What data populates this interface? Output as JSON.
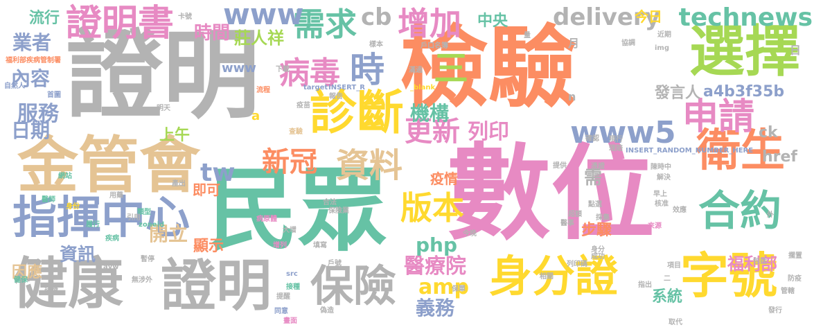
{
  "palette": {
    "teal": "#66c2a5",
    "orange": "#fc8d62",
    "blue": "#8da0cb",
    "pink": "#e78ac3",
    "green": "#a6d854",
    "yellow": "#ffd92f",
    "tan": "#e5c494",
    "gray": "#b3b3b3"
  },
  "words": [
    {
      "text": "數位",
      "color": "pink"
    },
    {
      "text": "民眾",
      "color": "teal"
    },
    {
      "text": "檢驗",
      "color": "orange"
    },
    {
      "text": "證明",
      "color": "gray"
    },
    {
      "text": "選擇",
      "color": "green"
    },
    {
      "text": "金管會",
      "color": "tan"
    },
    {
      "text": "身分證",
      "color": "yellow"
    },
    {
      "text": "健康",
      "color": "gray"
    },
    {
      "text": "證明",
      "color": "gray"
    },
    {
      "text": "字號",
      "color": "yellow"
    },
    {
      "text": "指揮中心",
      "color": "blue"
    },
    {
      "text": "證明書",
      "color": "pink"
    },
    {
      "text": "診斷",
      "color": "yellow"
    },
    {
      "text": "衛生",
      "color": "orange"
    },
    {
      "text": "保險",
      "color": "gray"
    },
    {
      "text": "申請",
      "color": "pink"
    },
    {
      "text": "合約",
      "color": "teal"
    },
    {
      "text": "病毒",
      "color": "pink"
    },
    {
      "text": "時",
      "color": "blue"
    },
    {
      "text": "需求",
      "color": "teal"
    },
    {
      "text": "增加",
      "color": "pink"
    },
    {
      "text": "資料",
      "color": "tan"
    },
    {
      "text": "technews",
      "color": "teal"
    },
    {
      "text": "www5",
      "color": "blue"
    },
    {
      "text": "版本",
      "color": "yellow"
    },
    {
      "text": "delivery",
      "color": "gray"
    },
    {
      "text": "更新",
      "color": "pink"
    },
    {
      "text": "新冠",
      "color": "orange"
    },
    {
      "text": "三",
      "color": "green"
    },
    {
      "text": "www",
      "color": "blue"
    },
    {
      "text": "cb",
      "color": "gray"
    },
    {
      "text": "機構",
      "color": "teal"
    },
    {
      "text": "列印",
      "color": "pink"
    },
    {
      "text": "醫療院",
      "color": "pink"
    },
    {
      "text": "福利部",
      "color": "pink"
    },
    {
      "text": "a4b3f35b",
      "color": "blue"
    },
    {
      "text": "php",
      "color": "teal"
    },
    {
      "text": "amp",
      "color": "yellow"
    },
    {
      "text": "義務",
      "color": "blue"
    },
    {
      "text": "tw",
      "color": "blue"
    },
    {
      "text": "服務",
      "color": "blue"
    },
    {
      "text": "時間",
      "color": "pink"
    },
    {
      "text": "業者",
      "color": "blue"
    },
    {
      "text": "內容",
      "color": "blue"
    },
    {
      "text": "日期",
      "color": "blue"
    },
    {
      "text": "開立",
      "color": "tan"
    },
    {
      "text": "資訊",
      "color": "blue"
    },
    {
      "text": "莊人祥",
      "color": "green"
    },
    {
      "text": "需",
      "color": "gray"
    },
    {
      "text": "發言人",
      "color": "gray"
    },
    {
      "text": "流行",
      "color": "teal"
    },
    {
      "text": "系統",
      "color": "teal"
    },
    {
      "text": "步驟",
      "color": "orange"
    },
    {
      "text": "疫情",
      "color": "orange"
    },
    {
      "text": "顯示",
      "color": "orange"
    },
    {
      "text": "因應",
      "color": "tan"
    },
    {
      "text": "上午",
      "color": "green"
    },
    {
      "text": "即可",
      "color": "orange"
    },
    {
      "text": "中央",
      "color": "teal"
    },
    {
      "text": "今日",
      "color": "yellow"
    },
    {
      "text": "href",
      "color": "gray"
    },
    {
      "text": "ck",
      "color": "gray"
    },
    {
      "text": "月",
      "color": "gray"
    },
    {
      "text": "日",
      "color": "gray"
    },
    {
      "text": "n",
      "color": "gray"
    },
    {
      "text": "a",
      "color": "yellow"
    },
    {
      "text": "www",
      "color": "blue"
    },
    {
      "text": "福利部疾病管制署",
      "color": "orange"
    },
    {
      "text": "自然人",
      "color": "blue"
    },
    {
      "text": "首圖",
      "color": "blue"
    },
    {
      "text": "網站",
      "color": "teal"
    },
    {
      "text": "醫師",
      "color": "teal"
    },
    {
      "text": "身份",
      "color": "yellow"
    },
    {
      "text": "履行",
      "color": "teal"
    },
    {
      "text": "疾病",
      "color": "teal"
    },
    {
      "text": "健保",
      "color": "teal"
    },
    {
      "text": "排擠",
      "color": "gray"
    },
    {
      "text": "卡號",
      "color": "gray"
    },
    {
      "text": "樣本",
      "color": "gray"
    },
    {
      "text": "戶口名簿",
      "color": "gray"
    },
    {
      "text": "下載",
      "color": "gray"
    },
    {
      "text": "流程",
      "color": "orange"
    },
    {
      "text": "滿過",
      "color": "gray"
    },
    {
      "text": "target",
      "color": "blue"
    },
    {
      "text": "INSERT_R",
      "color": "blue"
    },
    {
      "text": "_blank",
      "color": "yellow"
    },
    {
      "text": "明天",
      "color": "gray"
    },
    {
      "text": "類型",
      "color": "teal"
    },
    {
      "text": "zoneid",
      "color": "teal"
    },
    {
      "text": "引用",
      "color": "gray"
    },
    {
      "text": "病原體",
      "color": "pink"
    },
    {
      "text": "大增",
      "color": "gray"
    },
    {
      "text": "增列",
      "color": "pink"
    },
    {
      "text": "填寫",
      "color": "gray"
    },
    {
      "text": "報告",
      "color": "gray"
    },
    {
      "text": "疫苗",
      "color": "gray"
    },
    {
      "text": "查驗",
      "color": "tan"
    },
    {
      "text": "合法",
      "color": "gray"
    },
    {
      "text": "保險業",
      "color": "gray"
    },
    {
      "text": "戶號",
      "color": "gray"
    },
    {
      "text": "接種",
      "color": "teal"
    },
    {
      "text": "提醒",
      "color": "gray"
    },
    {
      "text": "src",
      "color": "blue"
    },
    {
      "text": "今晚",
      "color": "gray"
    },
    {
      "text": "保單",
      "color": "gray"
    },
    {
      "text": "偽造",
      "color": "gray"
    },
    {
      "text": "畫面",
      "color": "pink"
    },
    {
      "text": "同意",
      "color": "blue"
    },
    {
      "text": "暫停",
      "color": "gray"
    },
    {
      "text": "無涉外",
      "color": "gray"
    },
    {
      "text": "用藥",
      "color": "gray"
    },
    {
      "text": "avw",
      "color": "gray"
    },
    {
      "text": "確認",
      "color": "gray"
    },
    {
      "text": "現行",
      "color": "gray"
    },
    {
      "text": "理賠",
      "color": "gray"
    },
    {
      "text": "INSERT_RANDOM_NUMBER_HERE",
      "color": "blue"
    },
    {
      "text": "陳時中",
      "color": "gray"
    },
    {
      "text": "解決",
      "color": "gray"
    },
    {
      "text": "早上",
      "color": "gray"
    },
    {
      "text": "點選",
      "color": "gray"
    },
    {
      "text": "提供",
      "color": "gray"
    },
    {
      "text": "憑證",
      "color": "gray"
    },
    {
      "text": "核准",
      "color": "gray"
    },
    {
      "text": "效應",
      "color": "gray"
    },
    {
      "text": "來源",
      "color": "pink"
    },
    {
      "text": "超額",
      "color": "gray"
    },
    {
      "text": "醫事",
      "color": "gray"
    },
    {
      "text": "採集",
      "color": "gray"
    },
    {
      "text": "身分",
      "color": "gray"
    },
    {
      "text": "成功",
      "color": "gray"
    },
    {
      "text": "列印碼",
      "color": "gray"
    },
    {
      "text": "項目",
      "color": "gray"
    },
    {
      "text": "包括",
      "color": "gray"
    },
    {
      "text": "相關",
      "color": "gray"
    },
    {
      "text": "指出",
      "color": "gray"
    },
    {
      "text": "防疫",
      "color": "gray"
    },
    {
      "text": "發行",
      "color": "gray"
    },
    {
      "text": "取代",
      "color": "gray"
    },
    {
      "text": "管轄",
      "color": "gray"
    },
    {
      "text": "擱置",
      "color": "gray"
    },
    {
      "text": "協調",
      "color": "gray"
    },
    {
      "text": "近期",
      "color": "gray"
    },
    {
      "text": "img",
      "color": "gray"
    },
    {
      "text": "量",
      "color": "gray"
    },
    {
      "text": "外",
      "color": "gray"
    },
    {
      "text": "二",
      "color": "gray"
    },
    {
      "text": "產出",
      "color": "gray"
    }
  ]
}
